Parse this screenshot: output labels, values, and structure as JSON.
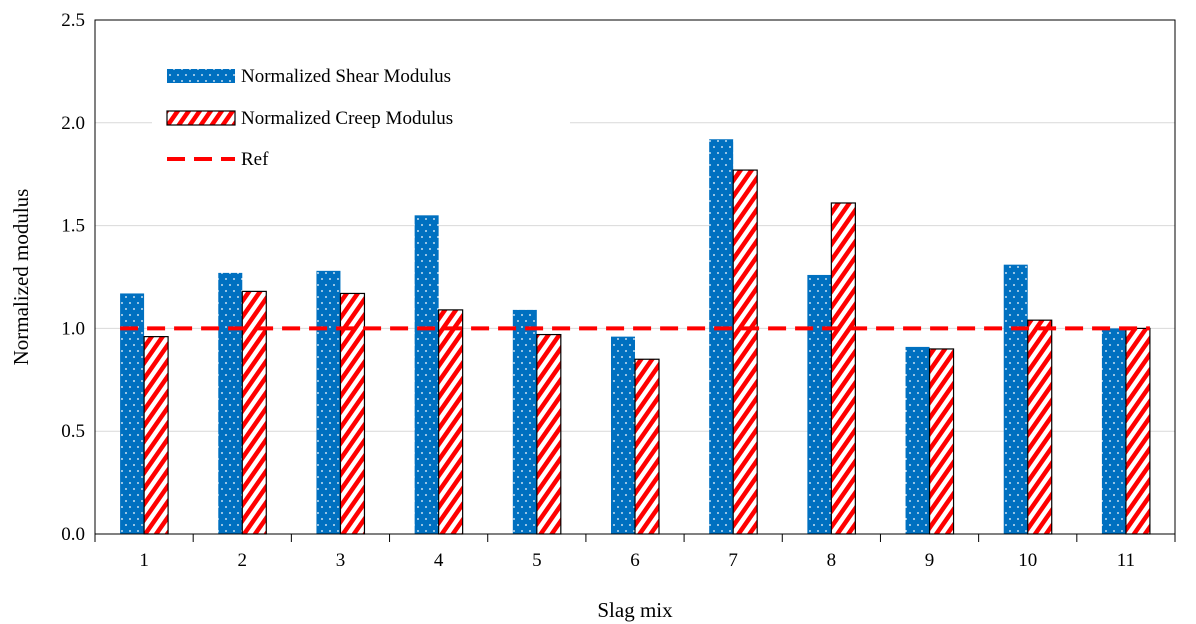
{
  "chart_data": {
    "type": "bar",
    "title": "",
    "xlabel": "Slag mix",
    "ylabel": "Normalized modulus",
    "categories": [
      "1",
      "2",
      "3",
      "4",
      "5",
      "6",
      "7",
      "8",
      "9",
      "10",
      "11"
    ],
    "ylim": [
      0,
      2.5
    ],
    "yticks": [
      "0.0",
      "0.5",
      "1.0",
      "1.5",
      "2.0",
      "2.5"
    ],
    "grid": "horizontal",
    "legend_position": "top-left inside",
    "series": [
      {
        "name": "Normalized Shear Modulus",
        "color": "#0070C0",
        "pattern": "dotted",
        "values": [
          1.17,
          1.27,
          1.28,
          1.55,
          1.09,
          0.96,
          1.92,
          1.26,
          0.91,
          1.31,
          1.0
        ]
      },
      {
        "name": "Normalized Creep Modulus",
        "color": "#FF0000",
        "pattern": "diagonal-stripes",
        "values": [
          0.96,
          1.18,
          1.17,
          1.09,
          0.97,
          0.85,
          1.77,
          1.61,
          0.9,
          1.04,
          1.0
        ]
      }
    ],
    "reference_line": {
      "name": "Ref",
      "value": 1.0,
      "color": "#FF0000",
      "style": "dashed"
    }
  }
}
